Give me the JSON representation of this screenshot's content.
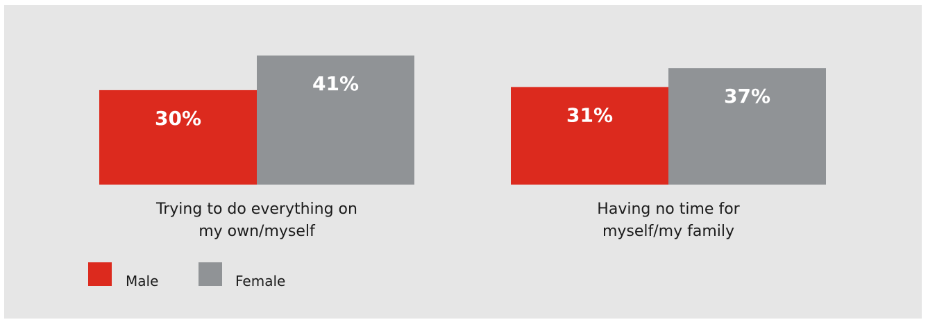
{
  "chart_data": {
    "type": "bar",
    "categories": [
      [
        "Trying to do everything on",
        "my own/myself"
      ],
      [
        "Having no time for",
        "myself/my family"
      ]
    ],
    "series": [
      {
        "name": "Male",
        "values": [
          30,
          31
        ],
        "labels": [
          "30%",
          "31%"
        ]
      },
      {
        "name": "Female",
        "values": [
          41,
          37
        ],
        "labels": [
          "41%",
          "37%"
        ]
      }
    ],
    "ylim": [
      0,
      41
    ],
    "grid": false,
    "legend": "bottom-left"
  },
  "colors": {
    "male": "#dc2a1e",
    "female": "#909396",
    "background": "#e6e6e6"
  }
}
